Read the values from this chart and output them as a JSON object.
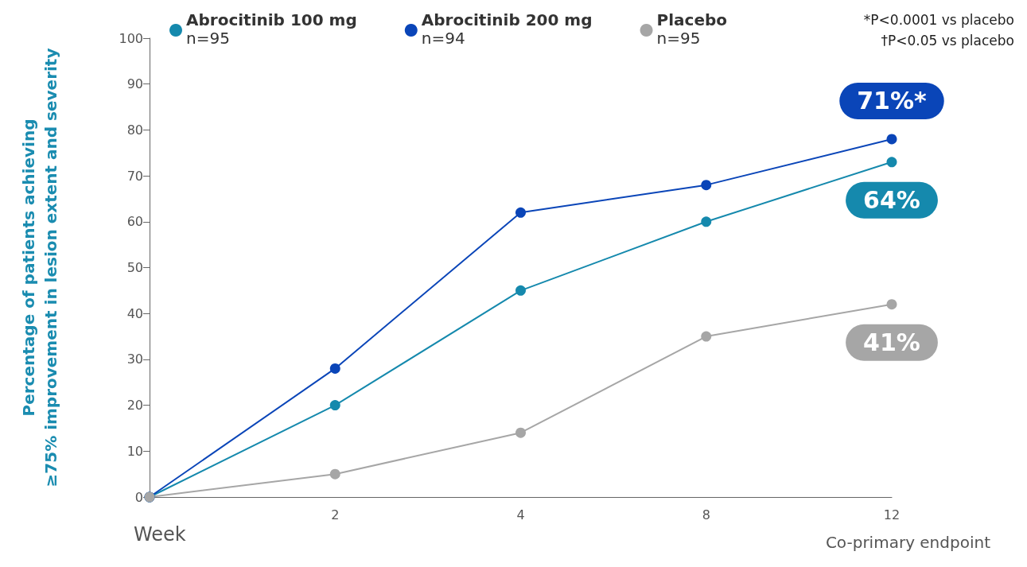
{
  "chart_data": {
    "type": "line",
    "categories": [
      null,
      "2",
      "4",
      "8",
      "12"
    ],
    "xlabel": "Week",
    "ylabel": "Percentage of patients achieving\n≥75% improvement in lesion extent and severity",
    "series": [
      {
        "name": "Abrocitinib 100 mg\nn=95",
        "color": "#1589ad",
        "values": [
          0,
          20,
          45,
          60,
          73
        ]
      },
      {
        "name": "Abrocitinib 200 mg\nn=94",
        "color": "#0a45b8",
        "values": [
          0,
          28,
          62,
          68,
          78
        ]
      },
      {
        "name": "Placebo\nn=95",
        "color": "#a6a6a6",
        "values": [
          0,
          5,
          14,
          35,
          42
        ]
      }
    ],
    "ylim": [
      0,
      100
    ],
    "yticks": [
      0,
      10,
      20,
      30,
      40,
      50,
      60,
      70,
      80,
      90,
      100
    ],
    "grid": false,
    "legend": "top",
    "marker": "circle",
    "line_style": "solid",
    "annotations": [
      "*P<0.0001 vs placebo",
      "†P<0.05 vs placebo",
      "Co-primary endpoint",
      {
        "text": "71%*",
        "x": "12",
        "y": 78
      },
      {
        "text": "64%",
        "x": "12",
        "y": 73
      },
      {
        "text": "41%",
        "x": "12",
        "y": 42
      }
    ]
  }
}
